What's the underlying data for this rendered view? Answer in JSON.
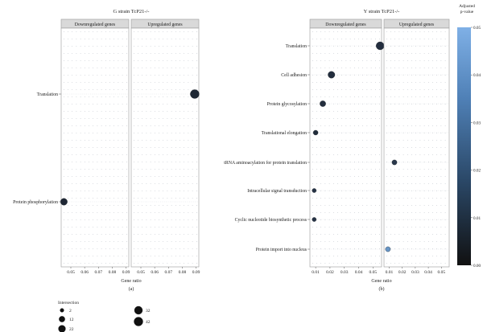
{
  "colors": {
    "low_p": "#1c2431",
    "high_p": "#6fa1d6",
    "dot_grid": "#9aa2ad",
    "strip_bg": "#d9d9d9",
    "panel_border": "#9a9a9a"
  },
  "colorbar": {
    "title_line1": "Adjusted",
    "title_line2": "p-value",
    "ticks": [
      "0.05",
      "0.04",
      "0.03",
      "0.02",
      "0.01",
      "0.00"
    ],
    "tick_values": [
      0.05,
      0.04,
      0.03,
      0.02,
      0.01,
      0.0
    ],
    "range": [
      0,
      0.05
    ]
  },
  "size_legend": {
    "title": "Intersection",
    "entries": [
      {
        "label": "2",
        "value": 2
      },
      {
        "label": "12",
        "value": 12
      },
      {
        "label": "22",
        "value": 22
      },
      {
        "label": "32",
        "value": 32
      },
      {
        "label": "42",
        "value": 42
      }
    ]
  },
  "chart_data": [
    {
      "type": "scatter",
      "title": "G strain TcP21-/-",
      "panel_label": "(a)",
      "xlabel": "Gene ratio",
      "facets": [
        "Downregulated genes",
        "Upregulated genes"
      ],
      "facet_xlim": [
        [
          0.043,
          0.092
        ],
        [
          0.043,
          0.092
        ]
      ],
      "facet_ticks": [
        [
          "0.05",
          "0.06",
          "0.07",
          "0.08",
          "0.09"
        ],
        [
          "0.05",
          "0.06",
          "0.07",
          "0.08",
          "0.09"
        ]
      ],
      "facet_tick_values": [
        [
          0.05,
          0.06,
          0.07,
          0.08,
          0.09
        ],
        [
          0.05,
          0.06,
          0.07,
          0.08,
          0.09
        ]
      ],
      "terms": [
        "Translation",
        "Protein phosphorylation"
      ],
      "points": [
        {
          "term": "Translation",
          "facet": 1,
          "x": 0.089,
          "count": 42,
          "p": 0.001
        },
        {
          "term": "Protein phosphorylation",
          "facet": 0,
          "x": 0.045,
          "count": 20,
          "p": 0.001
        }
      ]
    },
    {
      "type": "scatter",
      "title": "Y strain TcP21-/-",
      "panel_label": "(b)",
      "xlabel": "Gene ratio",
      "facets": [
        "Downregulated genes",
        "Upregulated genes"
      ],
      "facet_xlim": [
        [
          0.006,
          0.056
        ],
        [
          0.006,
          0.056
        ]
      ],
      "facet_ticks": [
        [
          "0.01",
          "0.02",
          "0.03",
          "0.04",
          "0.05"
        ],
        [
          "0.01",
          "0.02",
          "0.03",
          "0.04",
          "0.05"
        ]
      ],
      "facet_tick_values": [
        [
          0.01,
          0.02,
          0.03,
          0.04,
          0.05
        ],
        [
          0.01,
          0.02,
          0.03,
          0.04,
          0.05
        ]
      ],
      "terms": [
        "Translation",
        "Cell adhesion",
        "Protein glycosylation",
        "Translational elongation",
        "tRNA aminoacylation for protein translation",
        "Intracellular signal transduction",
        "Cyclic nucleotide biosynthetic process",
        "Protein import into nucleus"
      ],
      "points": [
        {
          "term": "Translation",
          "facet": 0,
          "x": 0.055,
          "count": 32,
          "p": 0.004
        },
        {
          "term": "Cell adhesion",
          "facet": 0,
          "x": 0.021,
          "count": 20,
          "p": 0.004
        },
        {
          "term": "Protein glycosylation",
          "facet": 0,
          "x": 0.015,
          "count": 12,
          "p": 0.004
        },
        {
          "term": "Translational elongation",
          "facet": 0,
          "x": 0.01,
          "count": 6,
          "p": 0.003
        },
        {
          "term": "tRNA aminoacylation for protein translation",
          "facet": 1,
          "x": 0.014,
          "count": 7,
          "p": 0.008
        },
        {
          "term": "Intracellular signal transduction",
          "facet": 0,
          "x": 0.009,
          "count": 3,
          "p": 0.006
        },
        {
          "term": "Cyclic nucleotide biosynthetic process",
          "facet": 0,
          "x": 0.009,
          "count": 3,
          "p": 0.006
        },
        {
          "term": "Protein import into nucleus",
          "facet": 1,
          "x": 0.009,
          "count": 7,
          "p": 0.045
        }
      ]
    }
  ]
}
